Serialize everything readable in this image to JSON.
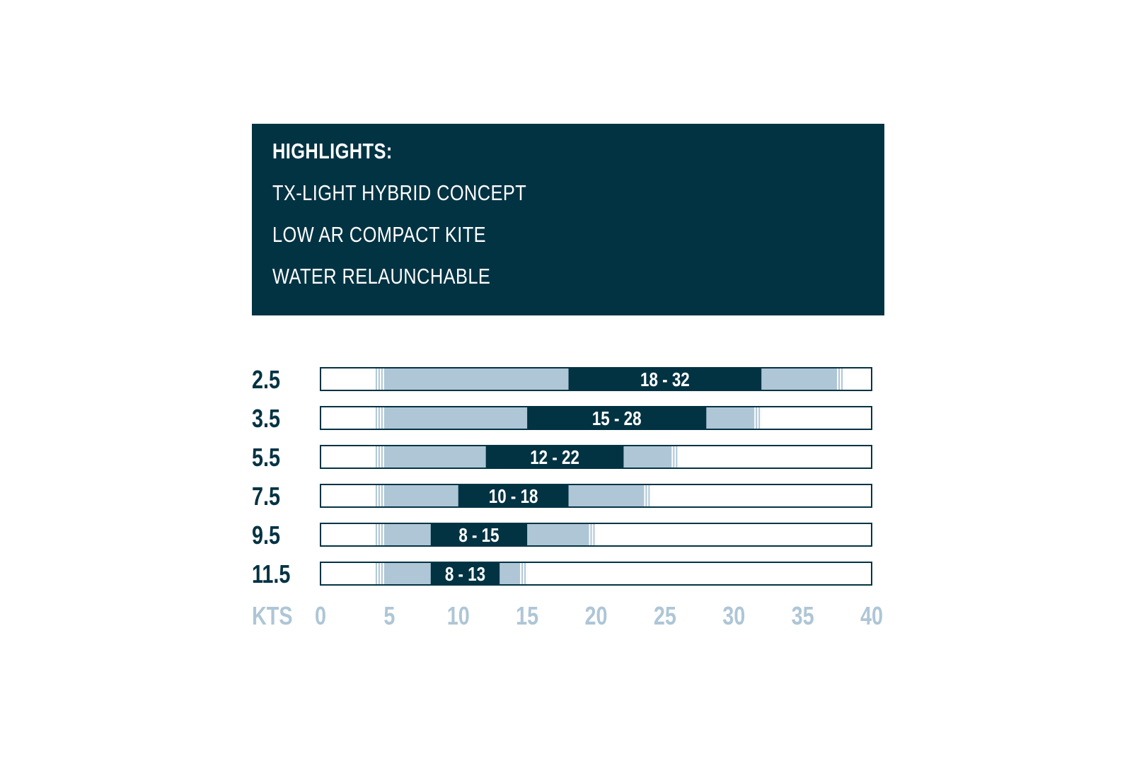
{
  "highlights": {
    "heading": "HIGHLIGHTS:",
    "items": [
      "TX-LIGHT HYBRID CONCEPT",
      "LOW AR COMPACT KITE",
      "WATER RELAUNCHABLE"
    ]
  },
  "colors": {
    "navy": "#023343",
    "light_blue": "#aec6d6",
    "white": "#ffffff"
  },
  "chart_data": {
    "type": "bar",
    "xlabel": "KTS",
    "xlim": [
      0,
      40
    ],
    "x_ticks": [
      "0",
      "5",
      "10",
      "15",
      "20",
      "25",
      "30",
      "35",
      "40"
    ],
    "rows": [
      {
        "size": "2.5",
        "extended_range": [
          4,
          38
        ],
        "ideal_range": [
          18,
          32
        ],
        "label": "18 - 32"
      },
      {
        "size": "3.5",
        "extended_range": [
          4,
          32
        ],
        "ideal_range": [
          15,
          28
        ],
        "label": "15 - 28"
      },
      {
        "size": "5.5",
        "extended_range": [
          4,
          26
        ],
        "ideal_range": [
          12,
          22
        ],
        "label": "12 - 22"
      },
      {
        "size": "7.5",
        "extended_range": [
          4,
          24
        ],
        "ideal_range": [
          10,
          18
        ],
        "label": "10 - 18"
      },
      {
        "size": "9.5",
        "extended_range": [
          4,
          20
        ],
        "ideal_range": [
          8,
          15
        ],
        "label": "8 - 15"
      },
      {
        "size": "11.5",
        "extended_range": [
          4,
          15
        ],
        "ideal_range": [
          8,
          13
        ],
        "label": "8 - 13"
      }
    ]
  }
}
